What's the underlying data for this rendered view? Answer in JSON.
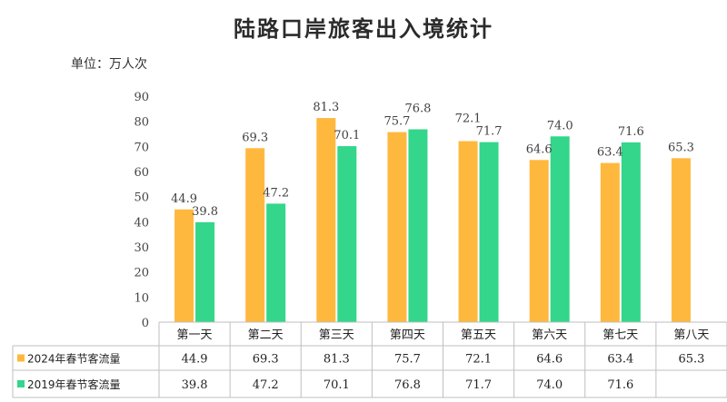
{
  "chart_data": {
    "type": "bar",
    "title": "陆路口岸旅客出入境统计",
    "unit": "单位：万人次",
    "categories": [
      "第一天",
      "第二天",
      "第三天",
      "第四天",
      "第五天",
      "第六天",
      "第七天",
      "第八天"
    ],
    "ylim": [
      0,
      90
    ],
    "yticks": [
      0,
      10,
      20,
      30,
      40,
      50,
      60,
      70,
      80,
      90
    ],
    "grid": false,
    "legend": "data-table",
    "series": [
      {
        "name": "2024年春节客流量",
        "color": "#FFB83E",
        "values": [
          44.9,
          69.3,
          81.3,
          75.7,
          72.1,
          64.6,
          63.4,
          65.3
        ],
        "labels": [
          "44.9",
          "69.3",
          "81.3",
          "75.7",
          "72.1",
          "64.6",
          "63.4",
          "65.3"
        ]
      },
      {
        "name": "2019年春节客流量",
        "color": "#33D68A",
        "values": [
          39.8,
          47.2,
          70.1,
          76.8,
          71.7,
          74.0,
          71.6,
          null
        ],
        "labels": [
          "39.8",
          "47.2",
          "70.1",
          "76.8",
          "71.7",
          "74.0",
          "71.6",
          ""
        ]
      }
    ]
  }
}
